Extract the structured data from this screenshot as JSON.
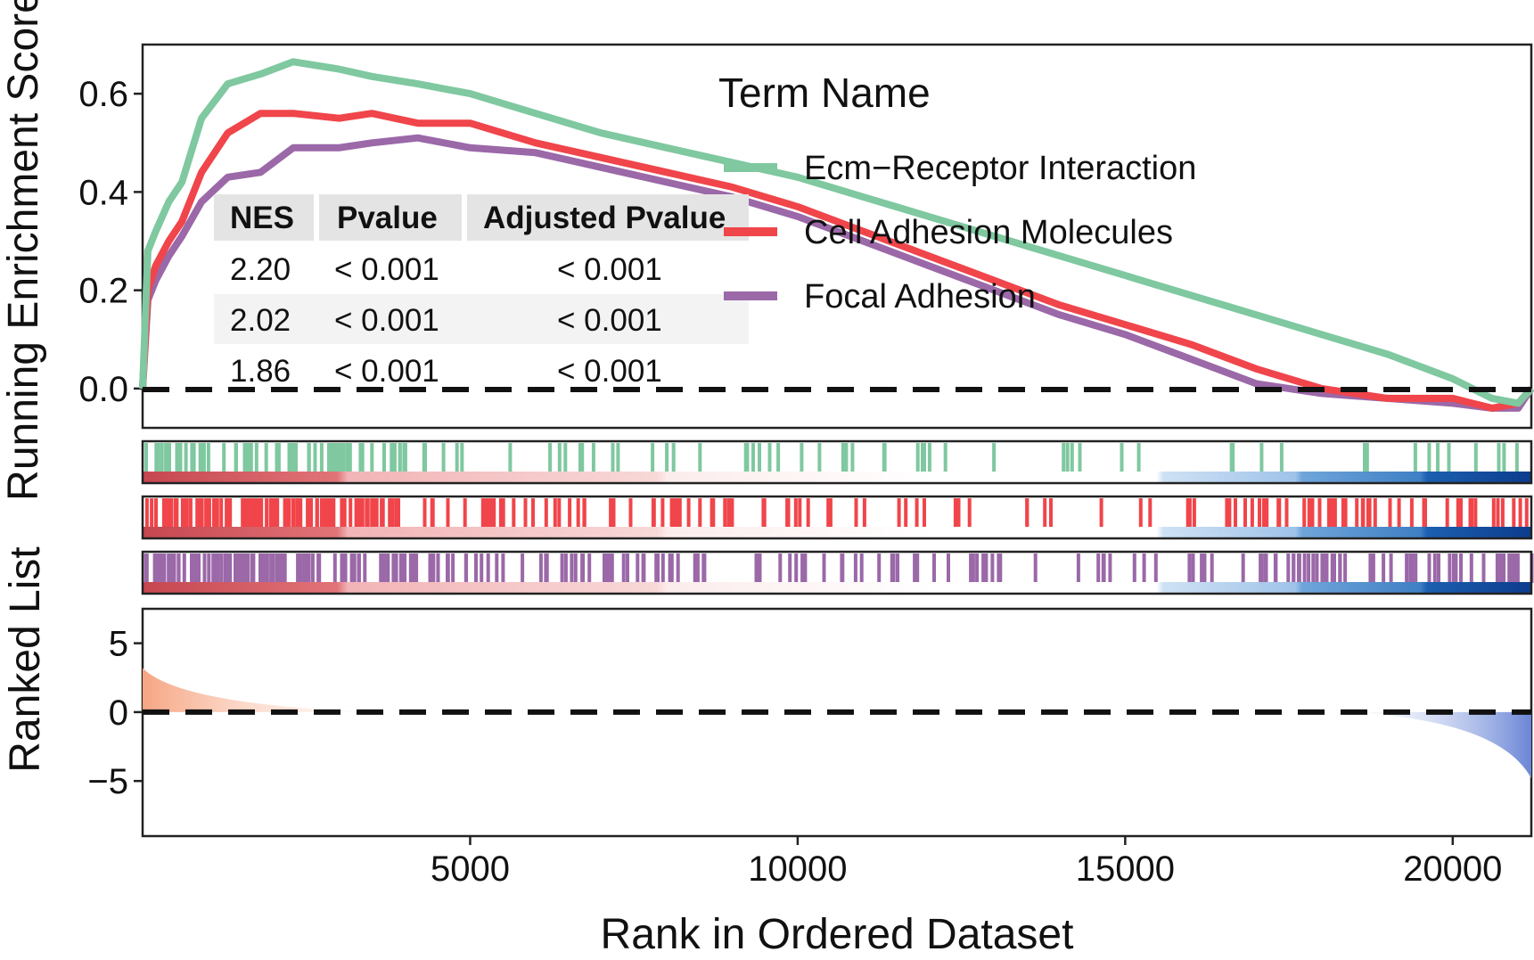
{
  "chart_data": {
    "type": "line",
    "description_axes": {
      "xlabel": "Rank in Ordered Dataset",
      "xlim": [
        0,
        21200
      ],
      "xticks": [
        5000,
        10000,
        15000,
        20000
      ],
      "xtick_labels": [
        "5000",
        "10000",
        "15000",
        "20000"
      ]
    },
    "es_panel": {
      "ylabel": "Running Enrichment Score",
      "ylim": [
        -0.08,
        0.7
      ],
      "yticks": [
        0.0,
        0.2,
        0.4,
        0.6
      ],
      "ytick_labels": [
        "0.0",
        "0.2",
        "0.4",
        "0.6"
      ],
      "zero_line": "dashed"
    },
    "rank_panel": {
      "ylabel": "Ranked List",
      "ylim": [
        -9,
        7.5
      ],
      "yticks": [
        5,
        0,
        -5
      ],
      "ytick_labels": [
        "5",
        "0",
        "−5"
      ],
      "rank_start": 3.2,
      "rank_end": -4.8,
      "zero_line": "dashed"
    },
    "legend": {
      "title": "Term Name",
      "position": "top-right"
    },
    "table": {
      "headers": [
        "NES",
        "Pvalue",
        "Adjusted Pvalue"
      ],
      "rows": [
        [
          "2.20",
          "< 0.001",
          "< 0.001"
        ],
        [
          "2.02",
          "< 0.001",
          "< 0.001"
        ],
        [
          "1.86",
          "< 0.001",
          "< 0.001"
        ]
      ]
    },
    "series": [
      {
        "name": "Ecm−Receptor Interaction",
        "color": "#7fc8a0",
        "x": [
          0,
          80,
          200,
          400,
          600,
          900,
          1300,
          1800,
          2300,
          3000,
          3500,
          4200,
          5000,
          6000,
          7000,
          8000,
          9000,
          10000,
          11000,
          12000,
          13000,
          14000,
          15000,
          16000,
          17000,
          18000,
          19000,
          20000,
          20600,
          21000,
          21200
        ],
        "y": [
          0.0,
          0.28,
          0.32,
          0.38,
          0.42,
          0.55,
          0.62,
          0.64,
          0.665,
          0.65,
          0.635,
          0.62,
          0.6,
          0.56,
          0.52,
          0.49,
          0.46,
          0.43,
          0.39,
          0.35,
          0.31,
          0.27,
          0.23,
          0.19,
          0.15,
          0.11,
          0.07,
          0.02,
          -0.02,
          -0.03,
          0.0
        ]
      },
      {
        "name": "Cell Adhesion Molecules",
        "color": "#f0454a",
        "x": [
          0,
          80,
          200,
          400,
          600,
          900,
          1300,
          1800,
          2300,
          3000,
          3500,
          4200,
          5000,
          6000,
          7000,
          8000,
          9000,
          10000,
          11000,
          12000,
          13000,
          14000,
          15000,
          16000,
          17000,
          18000,
          19000,
          20000,
          20600,
          21000,
          21200
        ],
        "y": [
          0.0,
          0.2,
          0.25,
          0.3,
          0.34,
          0.44,
          0.52,
          0.56,
          0.56,
          0.55,
          0.56,
          0.54,
          0.54,
          0.5,
          0.47,
          0.44,
          0.41,
          0.37,
          0.32,
          0.27,
          0.22,
          0.17,
          0.13,
          0.09,
          0.04,
          0.0,
          -0.02,
          -0.02,
          -0.04,
          -0.03,
          0.0
        ]
      },
      {
        "name": "Focal Adhesion",
        "color": "#9b68a8",
        "x": [
          0,
          80,
          200,
          400,
          600,
          900,
          1300,
          1800,
          2300,
          3000,
          3500,
          4200,
          5000,
          6000,
          7000,
          8000,
          9000,
          10000,
          11000,
          12000,
          13000,
          14000,
          15000,
          16000,
          17000,
          18000,
          19000,
          20000,
          20600,
          21000,
          21200
        ],
        "y": [
          0.0,
          0.18,
          0.22,
          0.27,
          0.31,
          0.38,
          0.43,
          0.44,
          0.49,
          0.49,
          0.5,
          0.51,
          0.49,
          0.48,
          0.45,
          0.42,
          0.39,
          0.35,
          0.3,
          0.25,
          0.2,
          0.15,
          0.11,
          0.06,
          0.01,
          -0.01,
          -0.02,
          -0.03,
          -0.04,
          -0.04,
          0.0
        ]
      }
    ]
  }
}
